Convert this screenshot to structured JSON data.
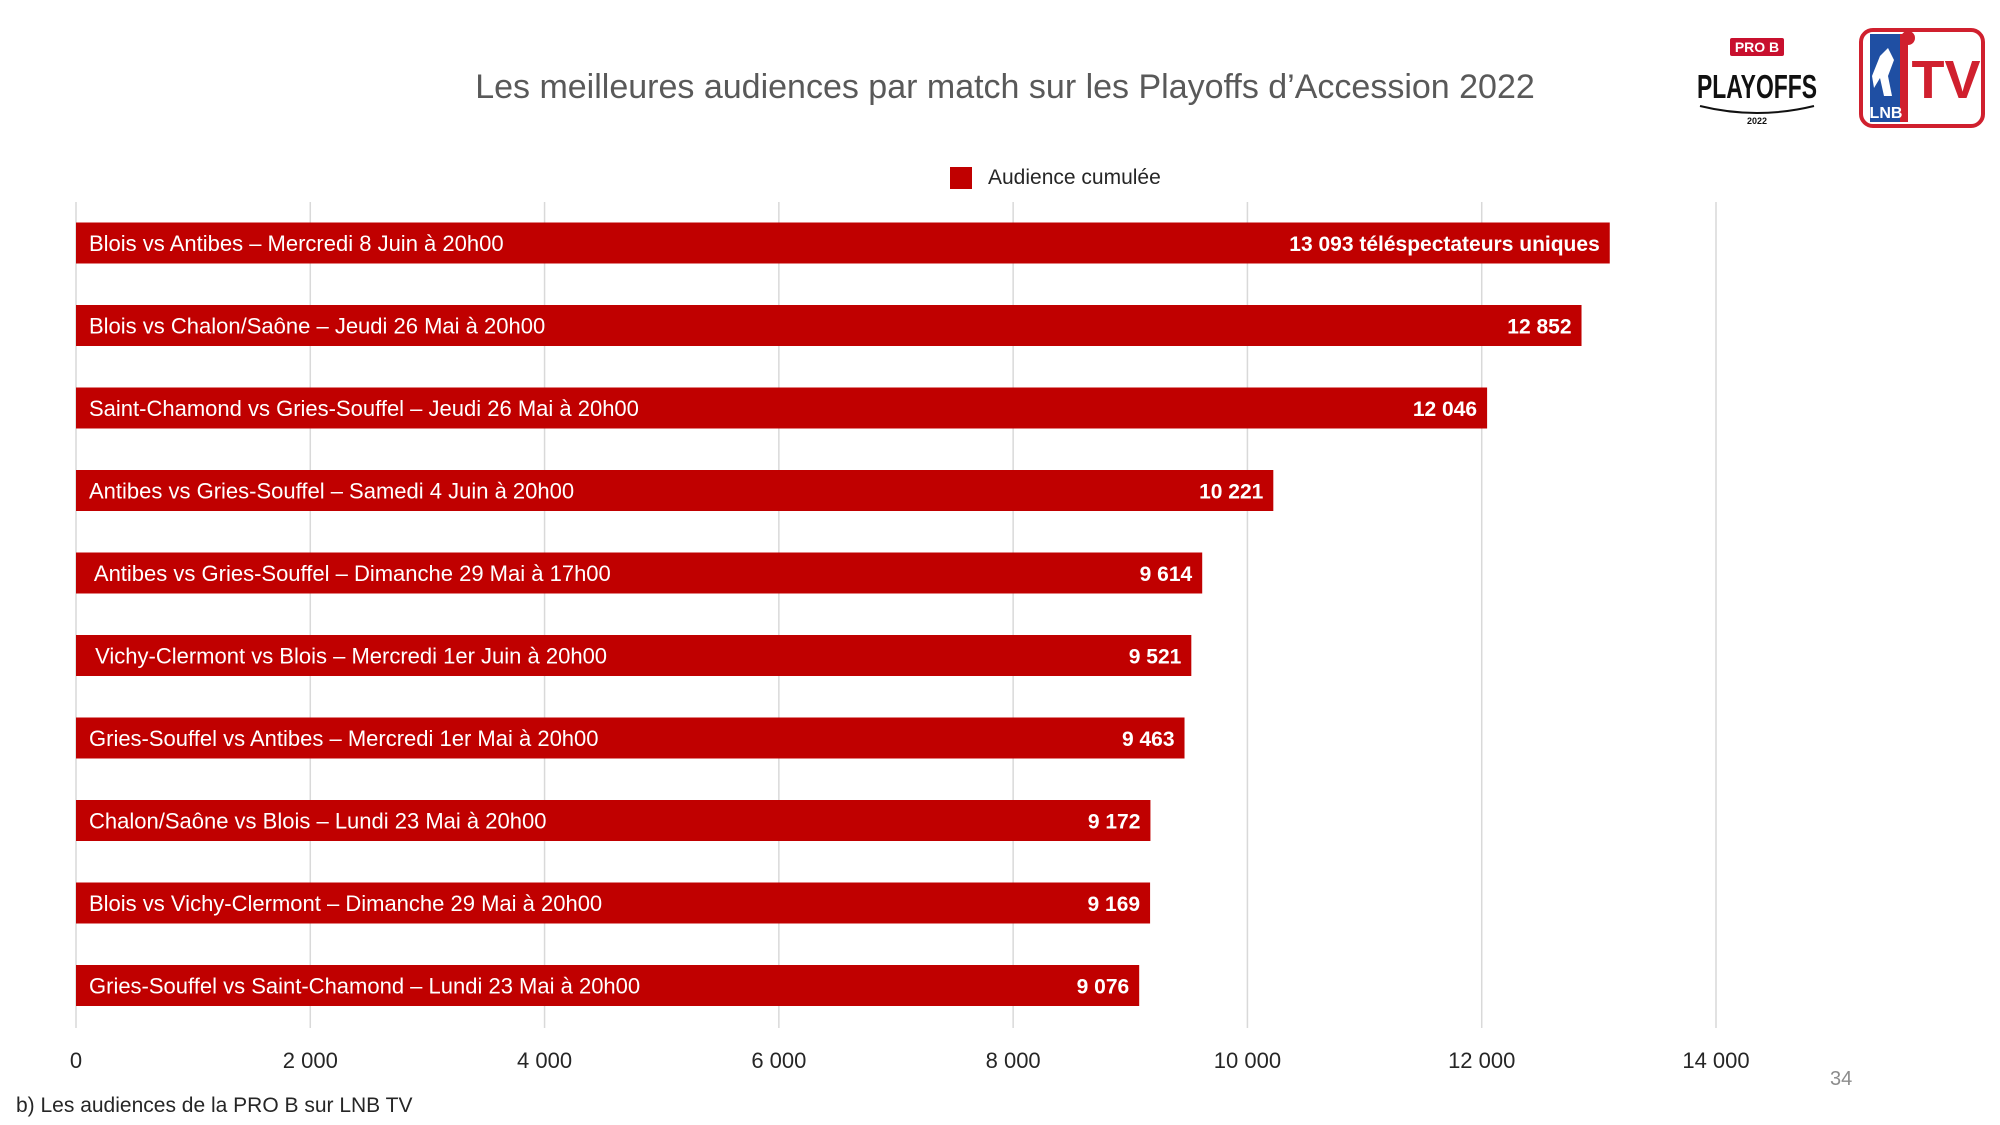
{
  "chart_data": {
    "type": "bar",
    "orientation": "horizontal",
    "title": "Les meilleures audiences par match sur les Playoffs d’Accession 2022",
    "legend": {
      "label": "Audience cumulée",
      "position": "top"
    },
    "categories": [
      "Blois vs Antibes – Mercredi 8 Juin à 20h00",
      "Blois vs Chalon/Saône – Jeudi 26 Mai à 20h00",
      "Saint-Chamond vs Gries-Souffel – Jeudi 26 Mai à 20h00",
      "Antibes vs Gries-Souffel – Samedi 4 Juin à 20h00",
      " Antibes vs Gries-Souffel – Dimanche 29 Mai à 17h00",
      " Vichy-Clermont vs Blois – Mercredi 1er Juin à 20h00",
      "Gries-Souffel vs Antibes – Mercredi 1er Mai à 20h00",
      "Chalon/Saône vs Blois – Lundi 23 Mai à 20h00",
      "Blois vs Vichy-Clermont – Dimanche 29 Mai à 20h00",
      "Gries-Souffel vs Saint-Chamond – Lundi 23 Mai à 20h00"
    ],
    "series": [
      {
        "name": "Audience cumulée",
        "color": "#c00000",
        "values": [
          13093,
          12852,
          12046,
          10221,
          9614,
          9521,
          9463,
          9172,
          9169,
          9076
        ],
        "data_labels": [
          "13 093 téléspectateurs uniques",
          "12 852",
          "12 046",
          "10 221",
          "9 614",
          "9 521",
          "9 463",
          "9 172",
          "9 169",
          "9 076"
        ]
      }
    ],
    "xlim": [
      0,
      14000
    ],
    "x_ticks": [
      0,
      2000,
      4000,
      6000,
      8000,
      10000,
      12000,
      14000
    ],
    "x_tick_labels": [
      "0",
      "2 000",
      "4 000",
      "6 000",
      "8 000",
      "10 000",
      "12 000",
      "14 000"
    ],
    "grid": "vertical"
  },
  "footnote": "b) Les audiences de la PRO B sur LNB TV",
  "page_number": "34",
  "logos": {
    "playoffs": {
      "badge": "PRO B",
      "text": "PLAYOFFS",
      "year": "2022"
    },
    "lnbtv": {
      "letters": "LNB",
      "tv": "TV"
    }
  },
  "colors": {
    "bar": "#c00000",
    "grid": "#d9d9d9",
    "title": "#595959"
  }
}
